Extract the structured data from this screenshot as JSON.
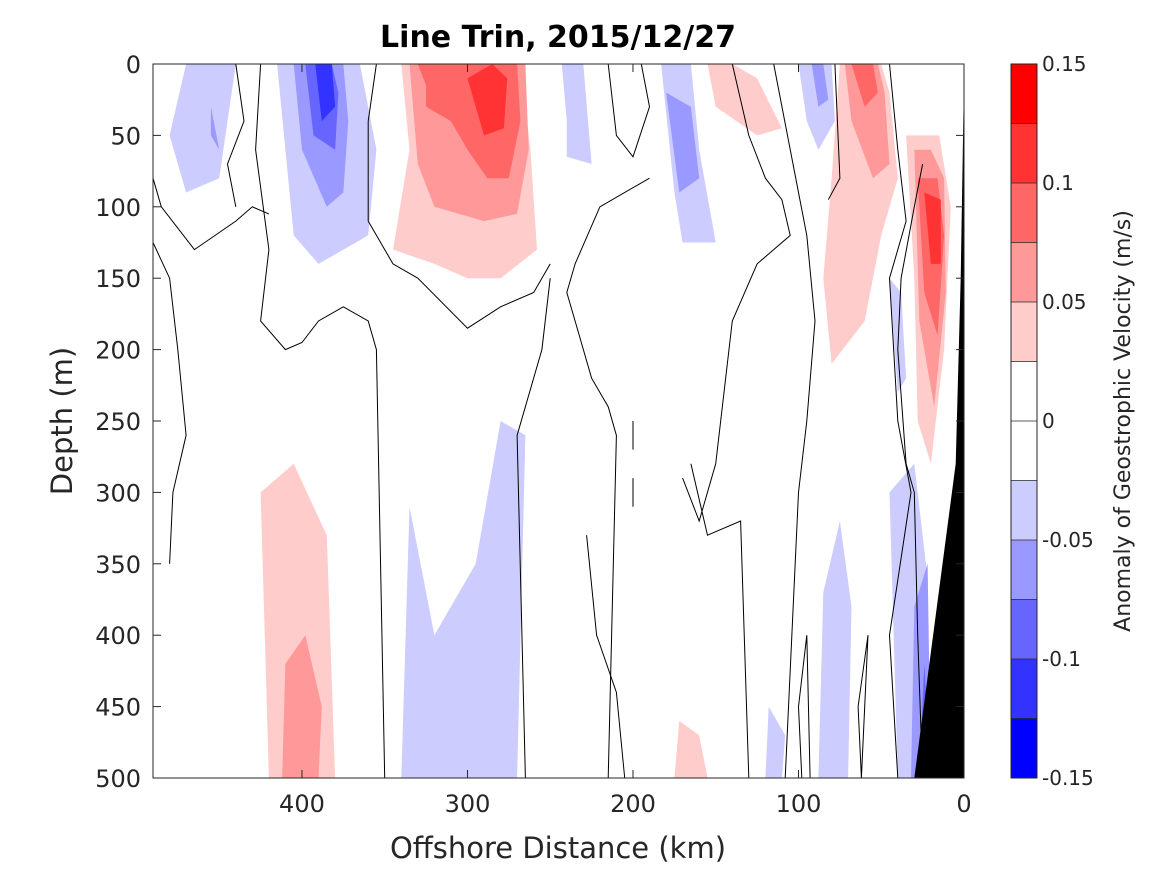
{
  "chart_data": {
    "type": "heatmap",
    "title": "Line Trin, 2015/12/27",
    "xlabel": "Offshore Distance (km)",
    "ylabel": "Depth (m)",
    "colorbar_label": "Anomaly of Geostrophic Velocity (m/s)",
    "x_reversed": true,
    "y_reversed": true,
    "xlim": [
      0,
      490
    ],
    "ylim": [
      0,
      500
    ],
    "x_ticks": [
      "400",
      "300",
      "200",
      "100",
      "0"
    ],
    "x_tick_values": [
      400,
      300,
      200,
      100,
      0
    ],
    "y_ticks": [
      "0",
      "50",
      "100",
      "150",
      "200",
      "250",
      "300",
      "350",
      "400",
      "450",
      "500"
    ],
    "y_tick_values": [
      0,
      50,
      100,
      150,
      200,
      250,
      300,
      350,
      400,
      450,
      500
    ],
    "colorbar_ticks": [
      "0.15",
      "0.1",
      "0.05",
      "0",
      "-0.05",
      "-0.1",
      "-0.15"
    ],
    "colorbar_tick_values": [
      0.15,
      0.1,
      0.05,
      0,
      -0.05,
      -0.1,
      -0.15
    ],
    "clim": [
      -0.15,
      0.15
    ],
    "levels": [
      -0.15,
      -0.125,
      -0.1,
      -0.075,
      -0.05,
      -0.025,
      0.025,
      0.05,
      0.075,
      0.1,
      0.125,
      0.15
    ],
    "level_colors": [
      "#0000ff",
      "#3333ff",
      "#6666ff",
      "#9999ff",
      "#ccccff",
      "#ffffff",
      "#ffcccc",
      "#ff9999",
      "#ff6666",
      "#ff3333",
      "#ff0000"
    ],
    "bathymetry_color": "#000000",
    "features": [
      {
        "type": "negative",
        "center_x": 395,
        "center_depth": 20,
        "peak": -0.11
      },
      {
        "type": "positive",
        "center_x": 285,
        "center_depth": 45,
        "peak": 0.11
      },
      {
        "type": "positive",
        "center_x": 20,
        "center_depth": 100,
        "peak": 0.14
      },
      {
        "type": "positive",
        "center_x": 400,
        "center_depth": 450,
        "peak": 0.08
      },
      {
        "type": "negative",
        "center_x": 300,
        "center_depth": 390,
        "peak": -0.04
      },
      {
        "type": "negative",
        "center_x": 30,
        "center_depth": 420,
        "peak": -0.09
      }
    ]
  }
}
